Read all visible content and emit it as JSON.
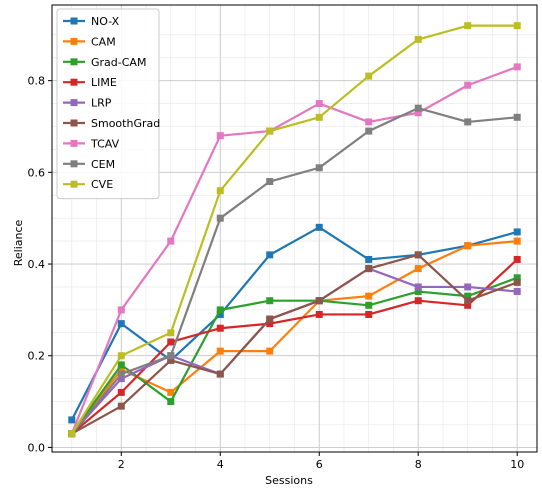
{
  "chart_data": {
    "type": "line",
    "title": "",
    "xlabel": "Sessions",
    "ylabel": "Reliance",
    "x": [
      1,
      2,
      3,
      4,
      5,
      6,
      7,
      8,
      9,
      10
    ],
    "xlim": [
      0.6,
      10.4
    ],
    "ylim": [
      -0.01,
      0.965
    ],
    "xticks": [
      2,
      4,
      6,
      8,
      10
    ],
    "yticks": [
      0.0,
      0.2,
      0.4,
      0.6,
      0.8
    ],
    "ytick_labels": [
      "0.0",
      "0.2",
      "0.4",
      "0.6",
      "0.8"
    ],
    "grid": true,
    "legend_position": "top-left",
    "series": [
      {
        "name": "NO-X",
        "color": "#1f77b4",
        "values": [
          0.06,
          0.27,
          0.19,
          0.29,
          0.42,
          0.48,
          0.41,
          0.42,
          0.44,
          0.47
        ]
      },
      {
        "name": "CAM",
        "color": "#ff7f0e",
        "values": [
          0.03,
          0.17,
          0.12,
          0.21,
          0.21,
          0.32,
          0.33,
          0.39,
          0.44,
          0.45
        ]
      },
      {
        "name": "Grad-CAM",
        "color": "#2ca02c",
        "values": [
          0.03,
          0.18,
          0.1,
          0.3,
          0.32,
          0.32,
          0.31,
          0.34,
          0.33,
          0.37
        ]
      },
      {
        "name": "LIME",
        "color": "#d62728",
        "values": [
          0.03,
          0.12,
          0.23,
          0.26,
          0.27,
          0.29,
          0.29,
          0.32,
          0.31,
          0.41
        ]
      },
      {
        "name": "LRP",
        "color": "#9467bd",
        "values": [
          0.03,
          0.15,
          0.2,
          0.16,
          0.28,
          0.32,
          0.39,
          0.35,
          0.35,
          0.34
        ]
      },
      {
        "name": "SmoothGrad",
        "color": "#8c564b",
        "values": [
          0.03,
          0.09,
          0.19,
          0.16,
          0.28,
          0.32,
          0.39,
          0.42,
          0.32,
          0.36
        ]
      },
      {
        "name": "TCAV",
        "color": "#e377c2",
        "values": [
          0.03,
          0.3,
          0.45,
          0.68,
          0.69,
          0.75,
          0.71,
          0.73,
          0.79,
          0.83
        ]
      },
      {
        "name": "CEM",
        "color": "#7f7f7f",
        "values": [
          0.03,
          0.16,
          0.2,
          0.5,
          0.58,
          0.61,
          0.69,
          0.74,
          0.71,
          0.72
        ]
      },
      {
        "name": "CVE",
        "color": "#bcbd22",
        "values": [
          0.03,
          0.2,
          0.25,
          0.56,
          0.69,
          0.72,
          0.81,
          0.89,
          0.92,
          0.92
        ]
      }
    ]
  }
}
